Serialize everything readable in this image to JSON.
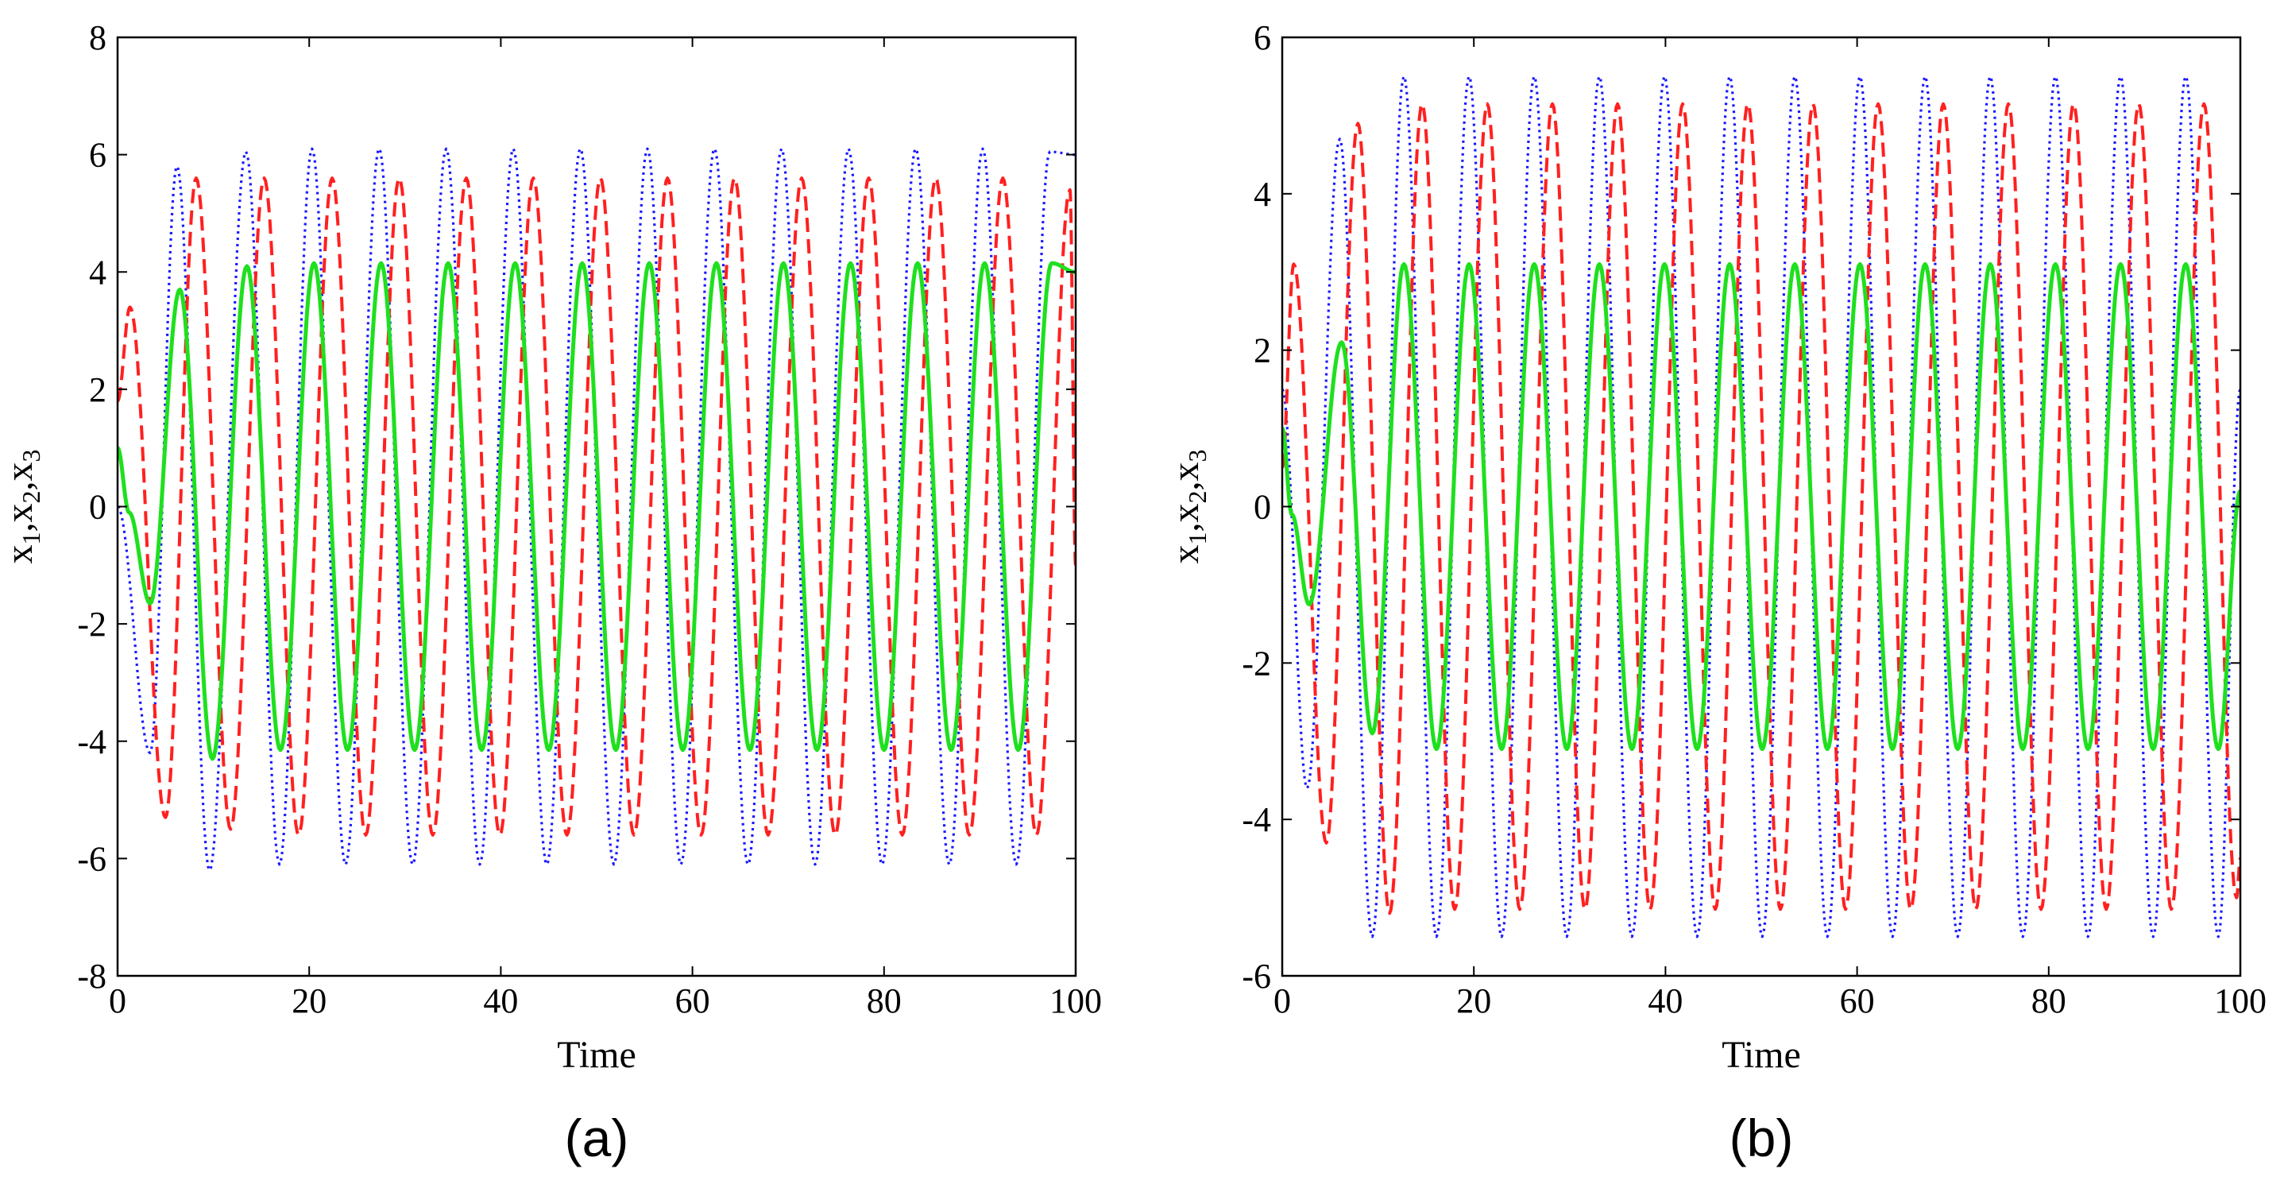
{
  "chart_data": [
    {
      "type": "line",
      "panel_label": "(a)",
      "xlabel": "Time",
      "ylabel": {
        "parts": [
          "x",
          "1",
          ",x",
          "2",
          ",x",
          "3"
        ]
      },
      "xlim": [
        0,
        100
      ],
      "ylim": [
        -8,
        8
      ],
      "xticks": [
        0,
        20,
        40,
        60,
        80,
        100
      ],
      "yticks": [
        -8,
        -6,
        -4,
        -2,
        0,
        2,
        4,
        6,
        8
      ],
      "grid": false,
      "series": [
        {
          "name": "x1",
          "color": "#1a1aff",
          "style": "dotted",
          "x": [
            0,
            3.4,
            6.2,
            9.6,
            13.4,
            16.9,
            20.3,
            23.8,
            27.3,
            30.8,
            34.3,
            37.8,
            41.3,
            44.8,
            48.3,
            51.8,
            55.3,
            58.8,
            62.3,
            65.8,
            69.3,
            72.8,
            76.3,
            79.8,
            83.3,
            86.8,
            90.3,
            93.8,
            97.3,
            100
          ],
          "y": [
            0,
            -4.2,
            5.8,
            -6.2,
            6.05,
            -6.1,
            6.1,
            -6.1,
            6.1,
            -6.1,
            6.1,
            -6.1,
            6.1,
            -6.1,
            6.1,
            -6.1,
            6.1,
            -6.1,
            6.1,
            -6.1,
            6.1,
            -6.1,
            6.1,
            -6.1,
            6.1,
            -6.1,
            6.1,
            -6.1,
            6.05,
            6.0
          ]
        },
        {
          "name": "x2",
          "color": "#ff2020",
          "style": "dashed",
          "x": [
            0,
            1.3,
            5.0,
            8.2,
            11.8,
            15.3,
            18.9,
            22.4,
            25.9,
            29.4,
            32.9,
            36.4,
            39.9,
            43.4,
            46.9,
            50.4,
            53.9,
            57.4,
            60.9,
            64.4,
            67.9,
            71.4,
            74.9,
            78.4,
            81.9,
            85.4,
            88.9,
            92.4,
            95.9,
            99.4,
            100
          ],
          "y": [
            1.8,
            3.4,
            -5.3,
            5.6,
            -5.5,
            5.6,
            -5.6,
            5.6,
            -5.6,
            5.6,
            -5.6,
            5.6,
            -5.6,
            5.6,
            -5.6,
            5.6,
            -5.6,
            5.6,
            -5.6,
            5.6,
            -5.6,
            5.6,
            -5.6,
            5.6,
            -5.6,
            5.6,
            -5.6,
            5.6,
            -5.6,
            5.4,
            -1.0
          ]
        },
        {
          "name": "x3",
          "color": "#1ee01e",
          "style": "solid",
          "x": [
            0,
            1.2,
            3.4,
            6.5,
            9.9,
            13.5,
            17.0,
            20.5,
            24.0,
            27.5,
            31.0,
            34.5,
            38.0,
            41.5,
            45.0,
            48.5,
            52.0,
            55.5,
            59.0,
            62.5,
            66.0,
            69.5,
            73.0,
            76.5,
            80.0,
            83.5,
            87.0,
            90.5,
            94.0,
            97.5,
            100
          ],
          "y": [
            1.0,
            -0.1,
            -1.65,
            3.7,
            -4.3,
            4.1,
            -4.15,
            4.15,
            -4.15,
            4.15,
            -4.15,
            4.15,
            -4.15,
            4.15,
            -4.15,
            4.15,
            -4.15,
            4.15,
            -4.15,
            4.15,
            -4.15,
            4.15,
            -4.15,
            4.15,
            -4.15,
            4.15,
            -4.15,
            4.15,
            -4.15,
            4.15,
            4.0
          ]
        }
      ]
    },
    {
      "type": "line",
      "panel_label": "(b)",
      "xlabel": "Time",
      "ylabel": {
        "parts": [
          "x",
          "1",
          ",x",
          "2",
          ",x",
          "3"
        ]
      },
      "xlim": [
        0,
        100
      ],
      "ylim": [
        -6,
        6
      ],
      "xticks": [
        0,
        20,
        40,
        60,
        80,
        100
      ],
      "yticks": [
        -6,
        -4,
        -2,
        0,
        2,
        4,
        6
      ],
      "grid": false,
      "series": [
        {
          "name": "x1",
          "color": "#1a1aff",
          "style": "dotted",
          "x": [
            0,
            2.6,
            6.0,
            9.4,
            12.7,
            16.1,
            19.5,
            22.9,
            26.3,
            29.7,
            33.1,
            36.5,
            39.9,
            43.3,
            46.7,
            50.1,
            53.5,
            56.9,
            60.3,
            63.7,
            67.1,
            70.5,
            73.9,
            77.3,
            80.7,
            84.1,
            87.5,
            90.9,
            94.3,
            97.7,
            100
          ],
          "y": [
            1.5,
            -3.6,
            4.7,
            -5.5,
            5.5,
            -5.5,
            5.5,
            -5.5,
            5.5,
            -5.5,
            5.5,
            -5.5,
            5.5,
            -5.5,
            5.5,
            -5.5,
            5.5,
            -5.5,
            5.5,
            -5.5,
            5.5,
            -5.5,
            5.5,
            -5.5,
            5.5,
            -5.5,
            5.5,
            -5.5,
            5.5,
            -5.5,
            1.5
          ]
        },
        {
          "name": "x2",
          "color": "#ff2020",
          "style": "dashed",
          "x": [
            0,
            1.2,
            4.6,
            7.9,
            11.2,
            14.6,
            18.0,
            21.4,
            24.8,
            28.2,
            31.6,
            35.0,
            38.4,
            41.8,
            45.2,
            48.6,
            52.0,
            55.4,
            58.8,
            62.2,
            65.6,
            69.0,
            72.4,
            75.8,
            79.2,
            82.6,
            86.0,
            89.4,
            92.8,
            96.2,
            99.6,
            100
          ],
          "y": [
            0.5,
            3.1,
            -4.3,
            4.9,
            -5.2,
            5.15,
            -5.15,
            5.15,
            -5.15,
            5.15,
            -5.15,
            5.15,
            -5.15,
            5.15,
            -5.15,
            5.15,
            -5.15,
            5.15,
            -5.15,
            5.15,
            -5.15,
            5.15,
            -5.15,
            5.15,
            -5.15,
            5.15,
            -5.15,
            5.15,
            -5.15,
            5.15,
            -5.0,
            -4.5
          ]
        },
        {
          "name": "x3",
          "color": "#1ee01e",
          "style": "solid",
          "x": [
            0,
            1.0,
            2.8,
            6.2,
            9.4,
            12.7,
            16.1,
            19.5,
            22.9,
            26.3,
            29.7,
            33.1,
            36.5,
            39.9,
            43.3,
            46.7,
            50.1,
            53.5,
            56.9,
            60.3,
            63.7,
            67.1,
            70.5,
            73.9,
            77.3,
            80.7,
            84.1,
            87.5,
            90.9,
            94.3,
            97.7,
            100
          ],
          "y": [
            1.0,
            -0.1,
            -1.25,
            2.1,
            -2.9,
            3.1,
            -3.1,
            3.1,
            -3.1,
            3.1,
            -3.1,
            3.1,
            -3.1,
            3.1,
            -3.1,
            3.1,
            -3.1,
            3.1,
            -3.1,
            3.1,
            -3.1,
            3.1,
            -3.1,
            3.1,
            -3.1,
            3.1,
            -3.1,
            3.1,
            -3.1,
            3.1,
            -3.1,
            0.2
          ]
        }
      ]
    }
  ]
}
